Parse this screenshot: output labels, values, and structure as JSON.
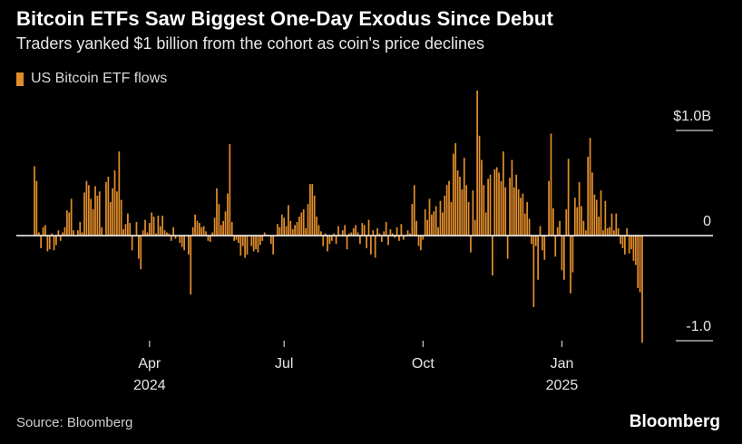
{
  "title": "Bitcoin ETFs Saw Biggest One-Day Exodus Since Debut",
  "subtitle": "Traders yanked $1 billion from the cohort as coin's price declines",
  "legend_label": "US Bitcoin ETF flows",
  "source": "Source: Bloomberg",
  "brand": "Bloomberg",
  "colors": {
    "bar": "#e28d2b",
    "zero_line": "#ffffff",
    "background": "#000000"
  },
  "chart_data": {
    "type": "bar",
    "title": "Bitcoin ETFs Saw Biggest One-Day Exodus Since Debut",
    "series": [
      {
        "name": "US Bitcoin ETF flows",
        "unit": "USD billions"
      }
    ],
    "ylim": [
      -1.07,
      1.38
    ],
    "yticks": [
      {
        "value": 1.0,
        "label": "$1.0B"
      },
      {
        "value": 0,
        "label": "0"
      },
      {
        "value": -1.0,
        "label": "-1.0"
      }
    ],
    "xticks": [
      {
        "index": 53,
        "month": "Apr",
        "year": "2024"
      },
      {
        "index": 115,
        "month": "Jul",
        "year": ""
      },
      {
        "index": 179,
        "month": "Oct",
        "year": ""
      },
      {
        "index": 243,
        "month": "Jan",
        "year": "2025"
      }
    ],
    "xlabel": "",
    "ylabel": "",
    "values": [
      0.66,
      0.52,
      0.03,
      -0.12,
      0.08,
      0.1,
      -0.15,
      -0.13,
      0.02,
      -0.14,
      -0.09,
      0.05,
      -0.05,
      0.03,
      0.08,
      0.24,
      0.22,
      0.35,
      0.05,
      0.0,
      0.05,
      0.13,
      0.03,
      0.41,
      0.52,
      0.48,
      0.35,
      0.25,
      0.47,
      0.38,
      0.42,
      0.08,
      0.0,
      0.51,
      0.56,
      0.32,
      0.45,
      0.62,
      0.42,
      0.8,
      0.34,
      0.06,
      0.11,
      0.21,
      0.12,
      -0.14,
      0.0,
      0.13,
      -0.22,
      -0.32,
      0.05,
      0.15,
      0.03,
      0.12,
      0.22,
      0.18,
      0.02,
      0.19,
      0.09,
      0.19,
      0.05,
      0.03,
      0.02,
      -0.05,
      0.08,
      -0.03,
      0.0,
      -0.07,
      -0.11,
      -0.14,
      0.0,
      -0.18,
      -0.56,
      0.08,
      0.2,
      0.14,
      0.12,
      0.08,
      0.09,
      0.04,
      -0.05,
      -0.06,
      0.03,
      0.17,
      0.45,
      0.3,
      0.1,
      0.14,
      0.23,
      0.4,
      0.87,
      0.13,
      -0.05,
      -0.04,
      -0.07,
      -0.19,
      -0.1,
      -0.21,
      -0.18,
      0.0,
      -0.1,
      -0.15,
      -0.13,
      -0.16,
      -0.09,
      -0.05,
      0.03,
      0.01,
      0.0,
      -0.08,
      -0.18,
      0.0,
      0.11,
      0.08,
      0.2,
      0.17,
      0.09,
      0.29,
      0.14,
      0.06,
      0.1,
      0.13,
      0.18,
      0.22,
      0.25,
      0.07,
      0.3,
      0.49,
      0.49,
      0.38,
      0.18,
      0.1,
      0.04,
      -0.1,
      0.02,
      -0.15,
      -0.08,
      -0.05,
      0.02,
      -0.08,
      0.09,
      0.01,
      0.05,
      0.1,
      -0.13,
      0.02,
      0.03,
      0.07,
      0.1,
      0.03,
      -0.08,
      0.12,
      0.1,
      -0.12,
      0.15,
      -0.18,
      0.05,
      -0.21,
      0.07,
      0.02,
      -0.06,
      0.04,
      0.13,
      -0.09,
      0.06,
      0.02,
      -0.02,
      0.08,
      -0.05,
      0.11,
      -0.04,
      0.0,
      0.05,
      0.02,
      0.3,
      0.48,
      0.14,
      -0.1,
      -0.14,
      -0.04,
      0.25,
      0.15,
      0.35,
      0.2,
      0.23,
      0.28,
      0.08,
      0.33,
      0.22,
      0.38,
      0.48,
      0.52,
      0.32,
      0.78,
      0.88,
      0.62,
      0.56,
      0.44,
      0.74,
      0.48,
      0.32,
      -0.16,
      0.43,
      0.15,
      1.38,
      0.95,
      0.72,
      0.48,
      0.22,
      0.54,
      0.58,
      -0.38,
      0.63,
      0.65,
      0.6,
      0.52,
      0.8,
      0.46,
      -0.22,
      0.55,
      0.72,
      0.46,
      0.58,
      0.44,
      0.36,
      0.4,
      0.21,
      0.32,
      0.16,
      -0.08,
      -0.68,
      -0.1,
      -0.42,
      0.09,
      -0.14,
      -0.23,
      0.0,
      0.52,
      0.97,
      0.26,
      -0.2,
      0.08,
      0.14,
      -0.33,
      -0.42,
      0.25,
      0.73,
      -0.55,
      -0.35,
      0.36,
      0.27,
      0.51,
      0.28,
      0.14,
      0.05,
      0.75,
      0.93,
      0.6,
      0.39,
      0.34,
      0.18,
      0.43,
      0.05,
      0.33,
      0.07,
      0.08,
      0.21,
      0.05,
      0.21,
      0.07,
      -0.08,
      -0.12,
      -0.18,
      0.07,
      -0.17,
      -0.13,
      -0.24,
      -0.28,
      -0.5,
      -0.54,
      -1.02
    ]
  }
}
